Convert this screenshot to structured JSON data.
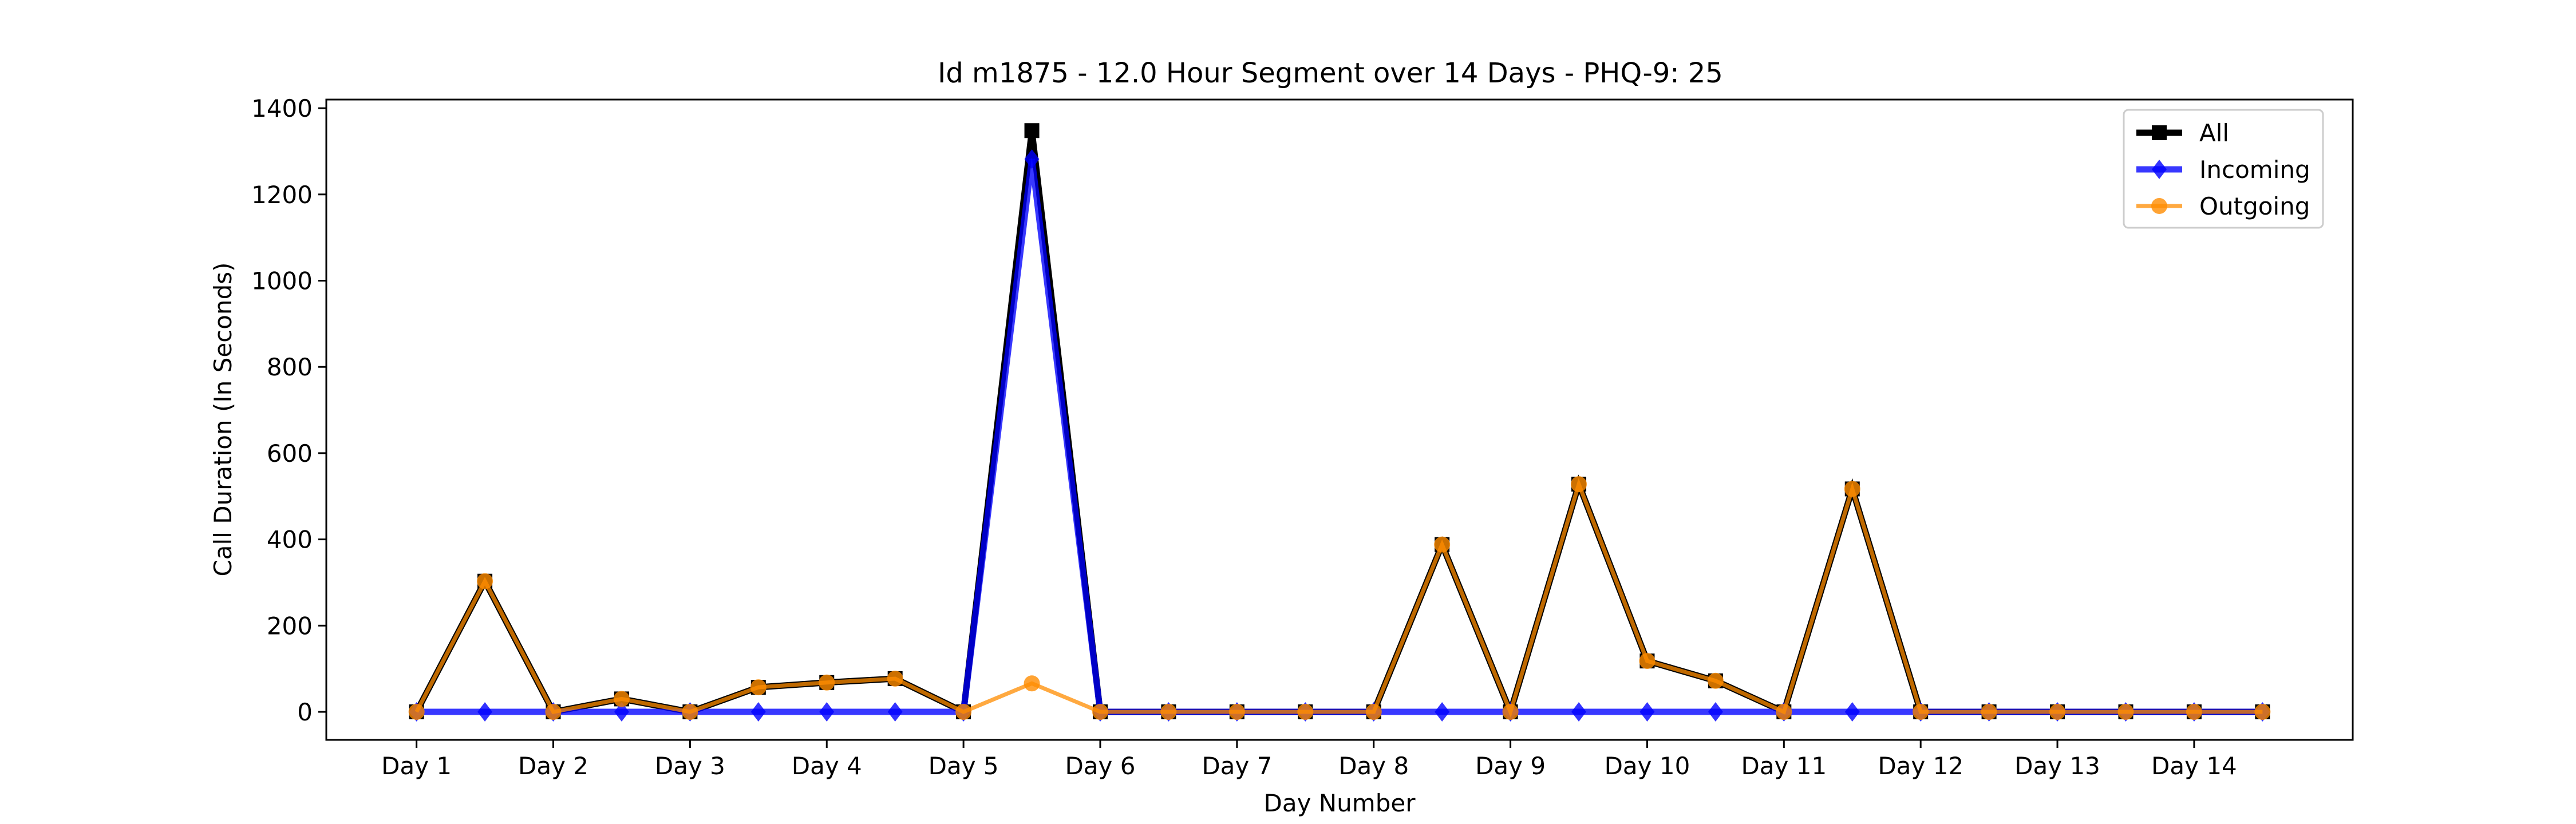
{
  "chart_data": {
    "type": "line",
    "title": "Id m1875 - 12.0 Hour Segment over 14 Days - PHQ-9: 25",
    "xlabel": "Day Number",
    "ylabel": "Call Duration (In Seconds)",
    "xtick_labels": [
      "Day 1",
      "Day 2",
      "Day 3",
      "Day 4",
      "Day 5",
      "Day 6",
      "Day 7",
      "Day 8",
      "Day 9",
      "Day 10",
      "Day 11",
      "Day 12",
      "Day 13",
      "Day 14"
    ],
    "yticks": [
      0,
      200,
      400,
      600,
      800,
      1000,
      1200,
      1400
    ],
    "ylim": [
      -65,
      1420
    ],
    "grid": false,
    "legend_position": "top-right",
    "x": [
      1,
      1.5,
      2,
      2.5,
      3,
      3.5,
      4,
      4.5,
      5,
      5.5,
      6,
      6.5,
      7,
      7.5,
      8,
      8.5,
      9,
      9.5,
      10,
      10.5,
      11,
      11.5,
      12,
      12.5,
      13,
      13.5,
      14,
      14.5
    ],
    "series": [
      {
        "name": "All",
        "color": "#000000",
        "marker": "square",
        "values": [
          0,
          303,
          0,
          30,
          0,
          57,
          68,
          77,
          0,
          1348,
          0,
          0,
          0,
          0,
          0,
          388,
          0,
          528,
          118,
          72,
          0,
          517,
          0,
          0,
          0,
          0,
          0,
          0
        ]
      },
      {
        "name": "Incoming",
        "color": "#0000ff",
        "marker": "diamond",
        "values": [
          0,
          0,
          0,
          0,
          0,
          0,
          0,
          0,
          0,
          1282,
          0,
          0,
          0,
          0,
          0,
          0,
          0,
          0,
          0,
          0,
          0,
          0,
          0,
          0,
          0,
          0,
          0,
          0
        ]
      },
      {
        "name": "Outgoing",
        "color": "#ff8c00",
        "marker": "circle",
        "values": [
          0,
          303,
          0,
          30,
          0,
          57,
          68,
          77,
          0,
          66,
          0,
          0,
          0,
          0,
          0,
          388,
          0,
          528,
          118,
          72,
          0,
          517,
          0,
          0,
          0,
          0,
          0,
          0
        ]
      }
    ]
  }
}
